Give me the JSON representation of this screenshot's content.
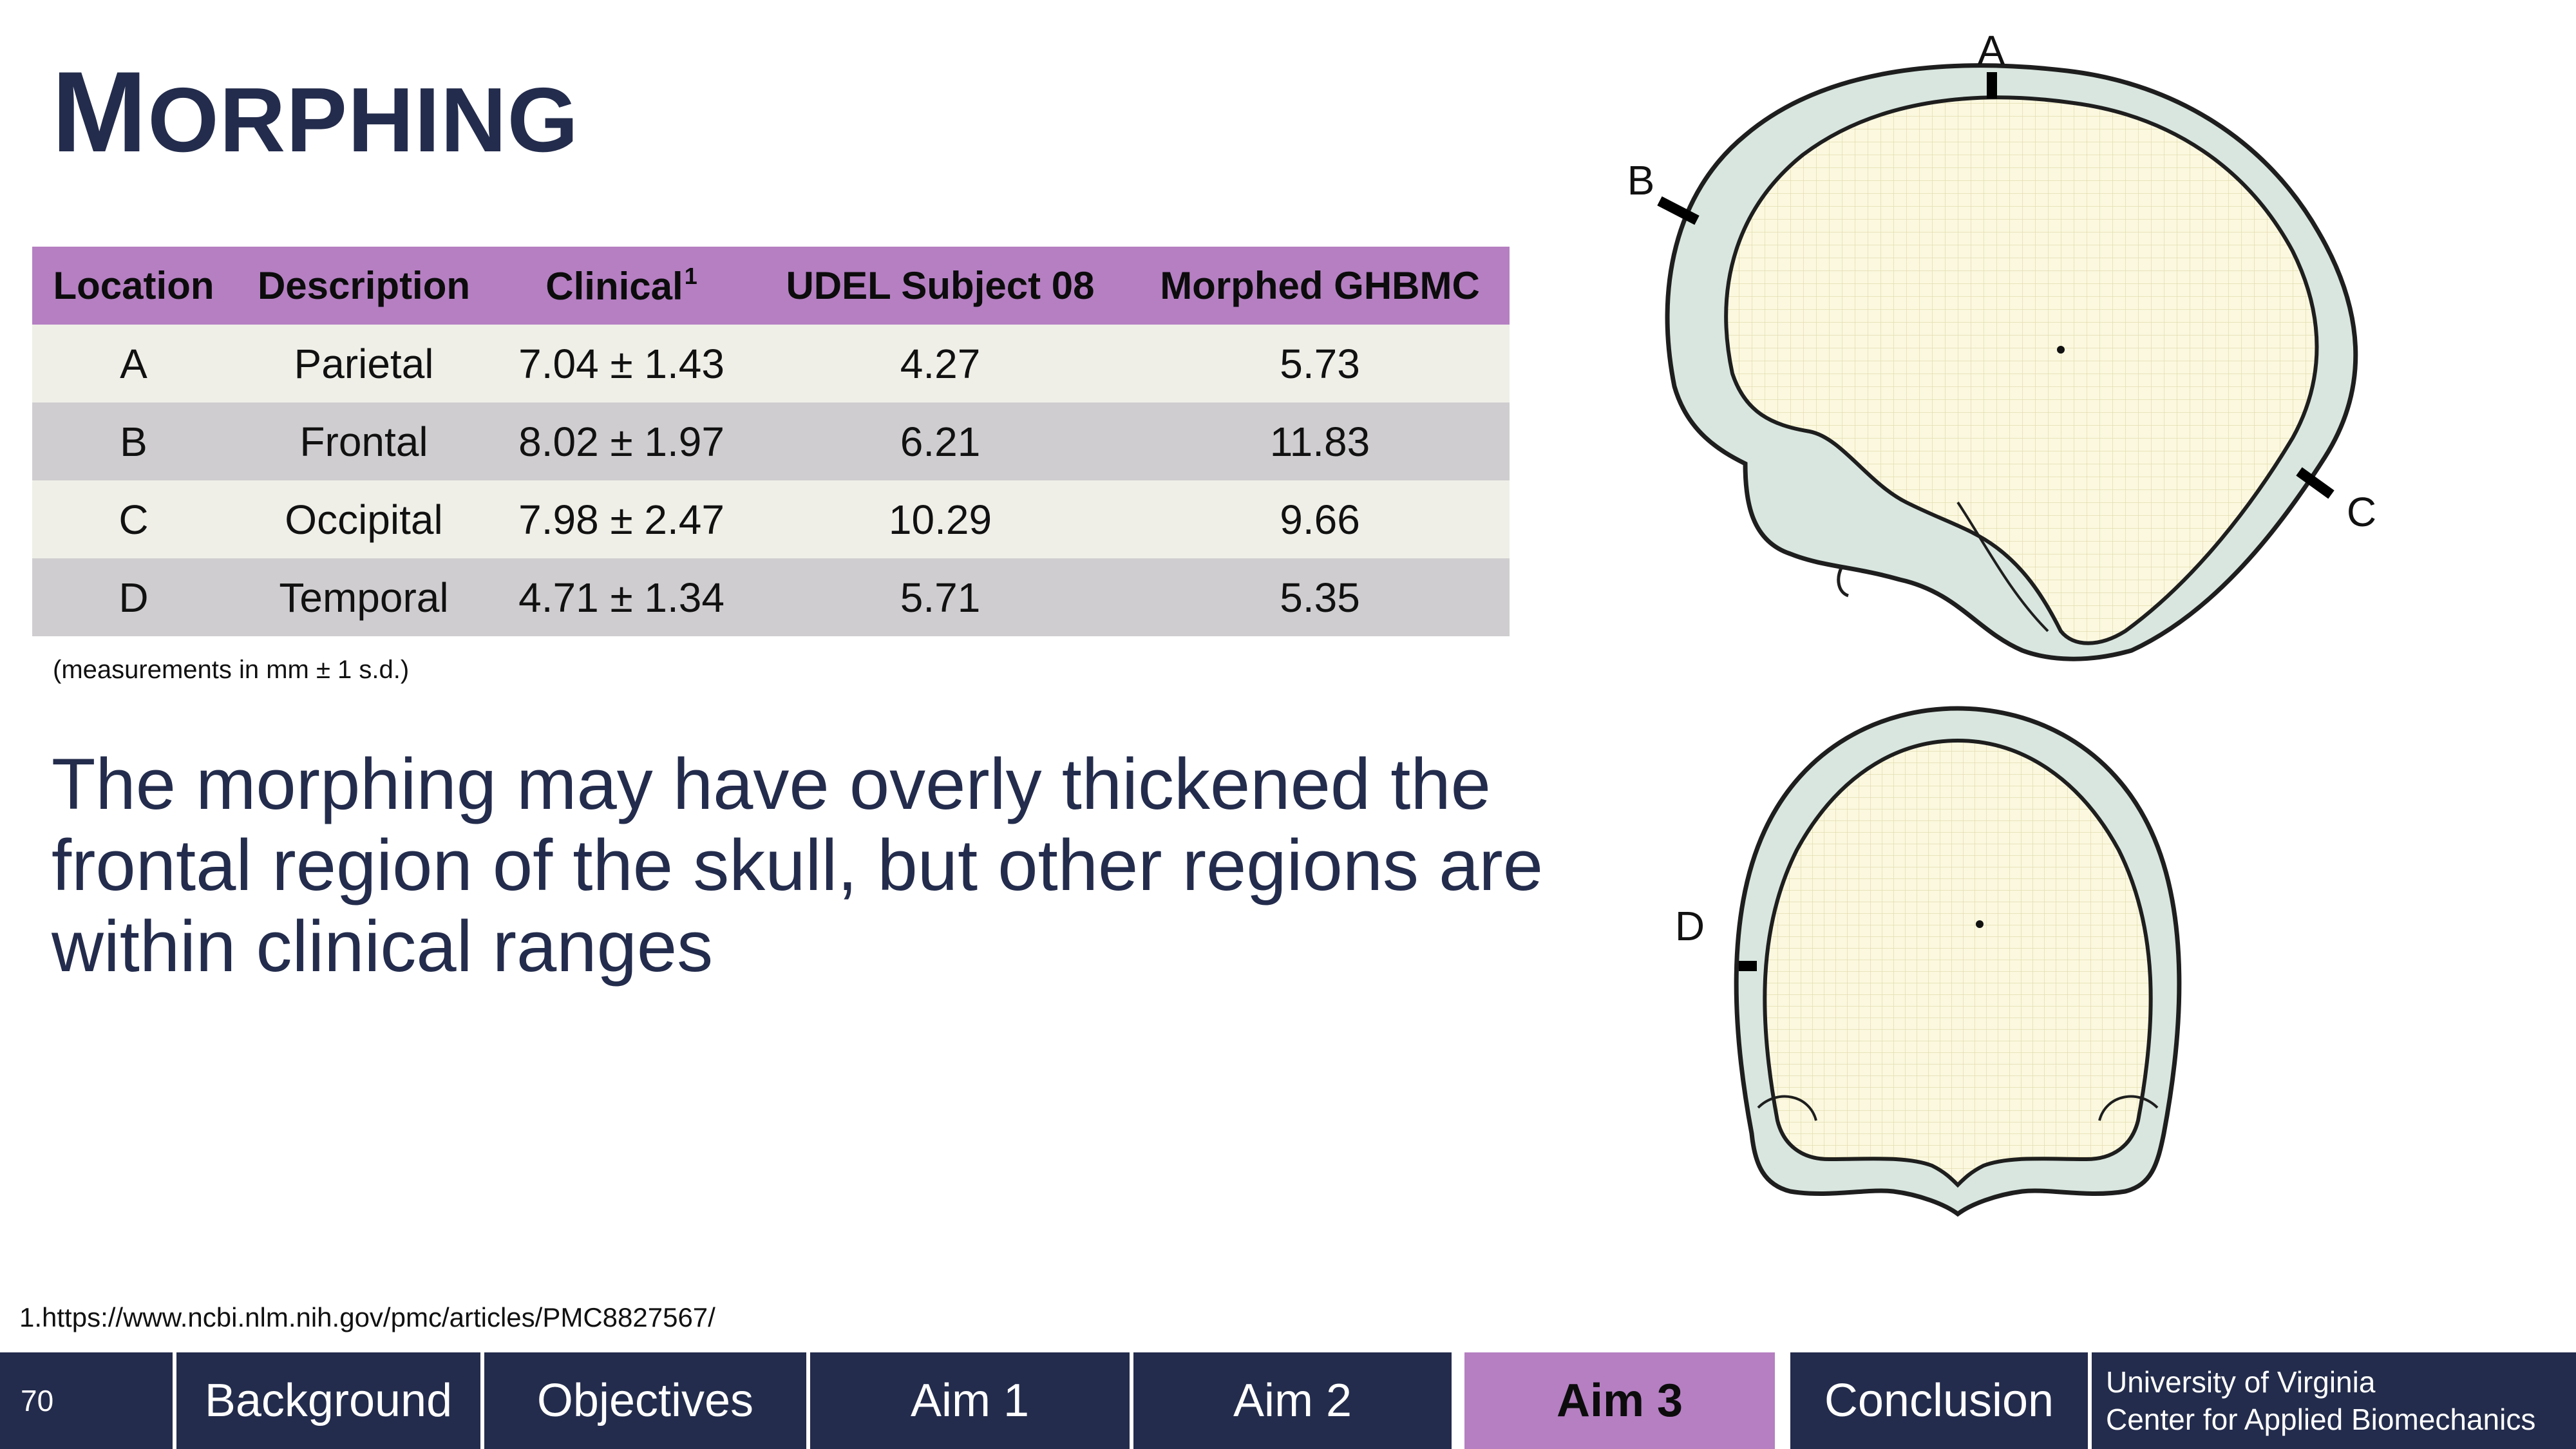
{
  "slide": {
    "title_first": "M",
    "title_rest": "ORPHING"
  },
  "table": {
    "headers": [
      "Location",
      "Description",
      "Clinical",
      "UDEL Subject 08",
      "Morphed GHBMC"
    ],
    "clinical_superscript": "1",
    "rows": [
      [
        "A",
        "Parietal",
        "7.04 ± 1.43",
        "4.27",
        "5.73"
      ],
      [
        "B",
        "Frontal",
        "8.02 ± 1.97",
        "6.21",
        "11.83"
      ],
      [
        "C",
        "Occipital",
        "7.98 ± 2.47",
        "10.29",
        "9.66"
      ],
      [
        "D",
        "Temporal",
        "4.71 ± 1.34",
        "5.71",
        "5.35"
      ]
    ]
  },
  "units_note": "(measurements in mm ± 1 s.d.)",
  "conclusion_text": "The morphing may have overly thickened the frontal region of the skull, but other regions are within clinical ranges",
  "reference": "1.https://www.ncbi.nlm.nih.gov/pmc/articles/PMC8827567/",
  "figure": {
    "lateral_labels": {
      "a": "A",
      "b": "B",
      "c": "C"
    },
    "frontal_labels": {
      "d": "D"
    }
  },
  "nav": {
    "page_number": "70",
    "items": [
      "Background",
      "Objectives",
      "Aim 1",
      "Aim 2",
      "Aim 3",
      "Conclusion"
    ],
    "active": "Aim 3",
    "institution_line1": "University of Virginia",
    "institution_line2": "Center for Applied Biomechanics"
  },
  "colors": {
    "navy": "#232c4c",
    "purple": "#b57fc2",
    "row_light": "#efefe8",
    "row_dark": "#cfcdcf"
  }
}
